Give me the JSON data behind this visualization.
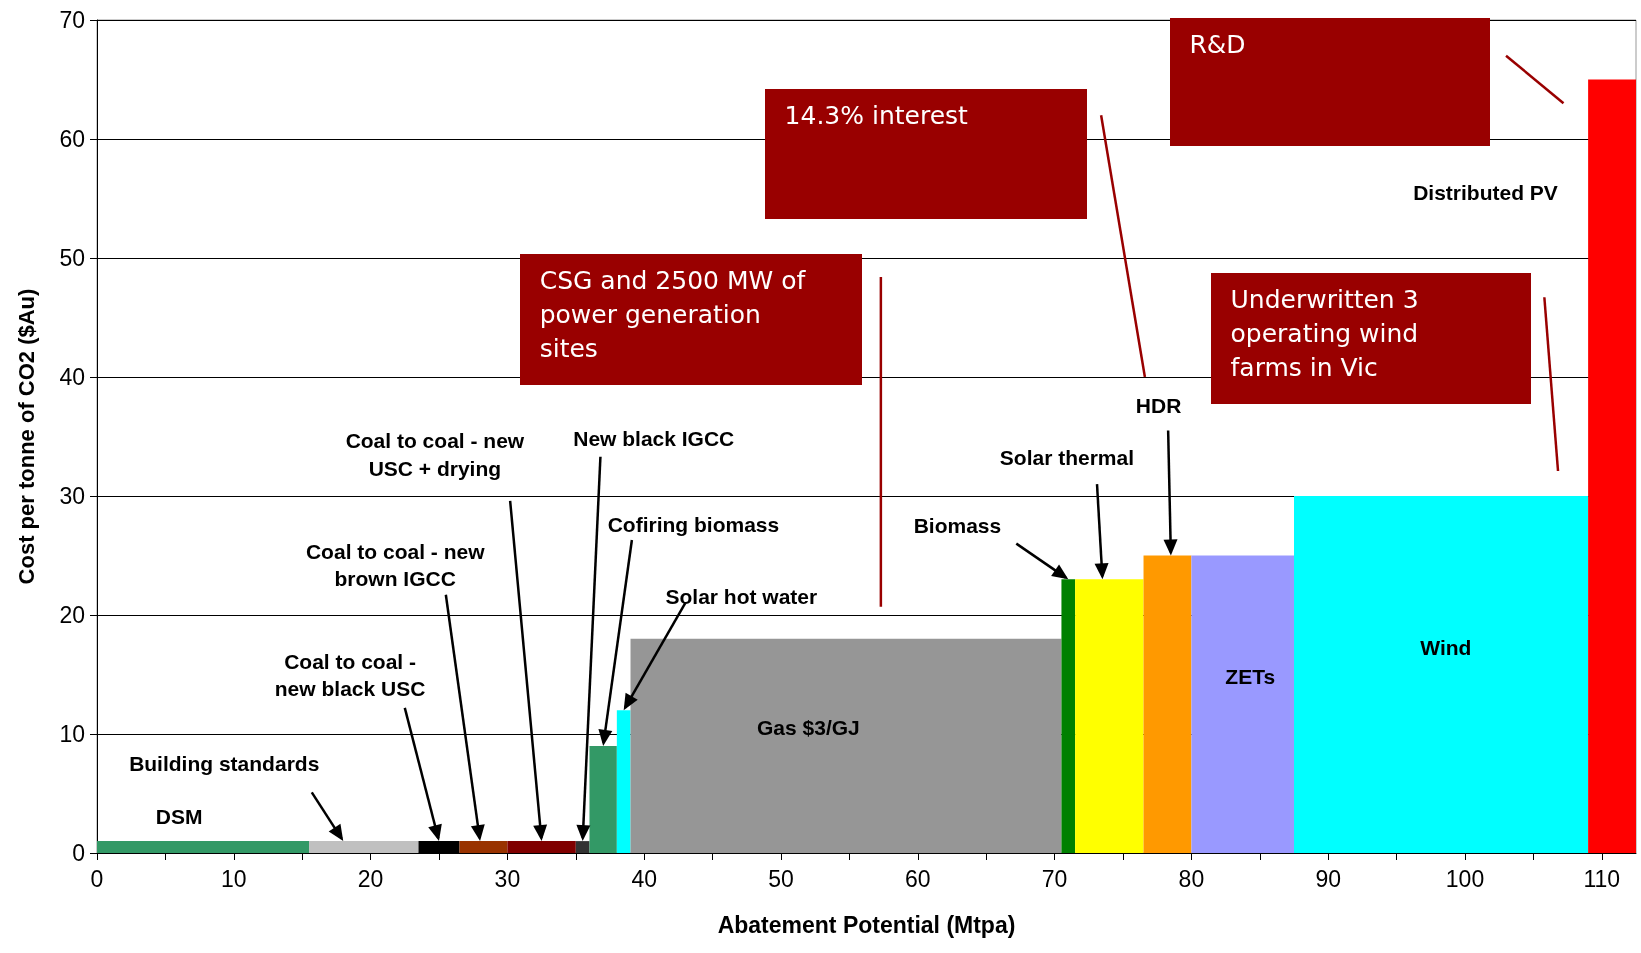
{
  "chart_data": {
    "type": "histogram",
    "xlabel": "Abatement Potential (Mtpa)",
    "ylabel": "Cost per tonne of CO2 ($Au)",
    "bins": [
      0,
      15.5,
      23.5,
      26.5,
      30,
      35,
      36,
      38,
      39,
      70.5,
      71.5,
      76.5,
      80,
      87.5,
      109,
      112.5
    ],
    "values": [
      1,
      1,
      1,
      1,
      1,
      1,
      9,
      12,
      18,
      23,
      23,
      25,
      25,
      30,
      65
    ],
    "colors": [
      "#339966",
      "#c0c0c0",
      "#000000",
      "#993300",
      "#800000",
      "#333333",
      "#339966",
      "#00ffff",
      "#969696",
      "#008000",
      "#ffff00",
      "#ff9900",
      "#9999ff",
      "#00ffff",
      "#ff0000"
    ],
    "xlim": [
      0,
      112.5
    ],
    "xticks": [
      0,
      {
        "value": 5,
        "label": null
      },
      10,
      {
        "value": 15,
        "label": null
      },
      20,
      {
        "value": 25,
        "label": null
      },
      30,
      {
        "value": 35,
        "label": null
      },
      40,
      {
        "value": 45,
        "label": null
      },
      50,
      {
        "value": 55,
        "label": null
      },
      60,
      {
        "value": 65,
        "label": null
      },
      70,
      {
        "value": 75,
        "label": null
      },
      80,
      {
        "value": 85,
        "label": null
      },
      90,
      {
        "value": 95,
        "label": null
      },
      100,
      {
        "value": 105,
        "label": null
      },
      110
    ],
    "ylim": [
      0,
      70
    ],
    "yticks": [
      0,
      10,
      20,
      30,
      40,
      50,
      60,
      70
    ],
    "grid": "y",
    "annotations": [
      "DSM",
      {
        "text": "Building standards",
        "x": 18,
        "y": 1
      },
      {
        "text": "Coal to coal - new black USC",
        "x": 25,
        "y": 1
      },
      {
        "text": "Coal to coal - new brown IGCC",
        "x": 28,
        "y": 1
      },
      {
        "text": "Coal to coal - new USC + drying",
        "x": 32.5,
        "y": 1
      },
      {
        "text": "New black IGCC",
        "x": 35.5,
        "y": 1
      },
      {
        "text": "Cofiring biomass",
        "x": 37,
        "y": 9
      },
      {
        "text": "Solar hot water",
        "x": 38.5,
        "y": 12
      },
      "Gas $3/GJ",
      {
        "text": "Biomass",
        "x": 71,
        "y": 23
      },
      {
        "text": "Solar thermal",
        "x": 73.5,
        "y": 23
      },
      {
        "text": "HDR",
        "x": 78.5,
        "y": 25
      },
      "ZETs",
      "Wind",
      "Distributed PV",
      "CSG and 2500 MW of power generation sites",
      "14.3% interest",
      "R&D",
      "Underwritten 3 operating wind farms in Vic"
    ]
  }
}
